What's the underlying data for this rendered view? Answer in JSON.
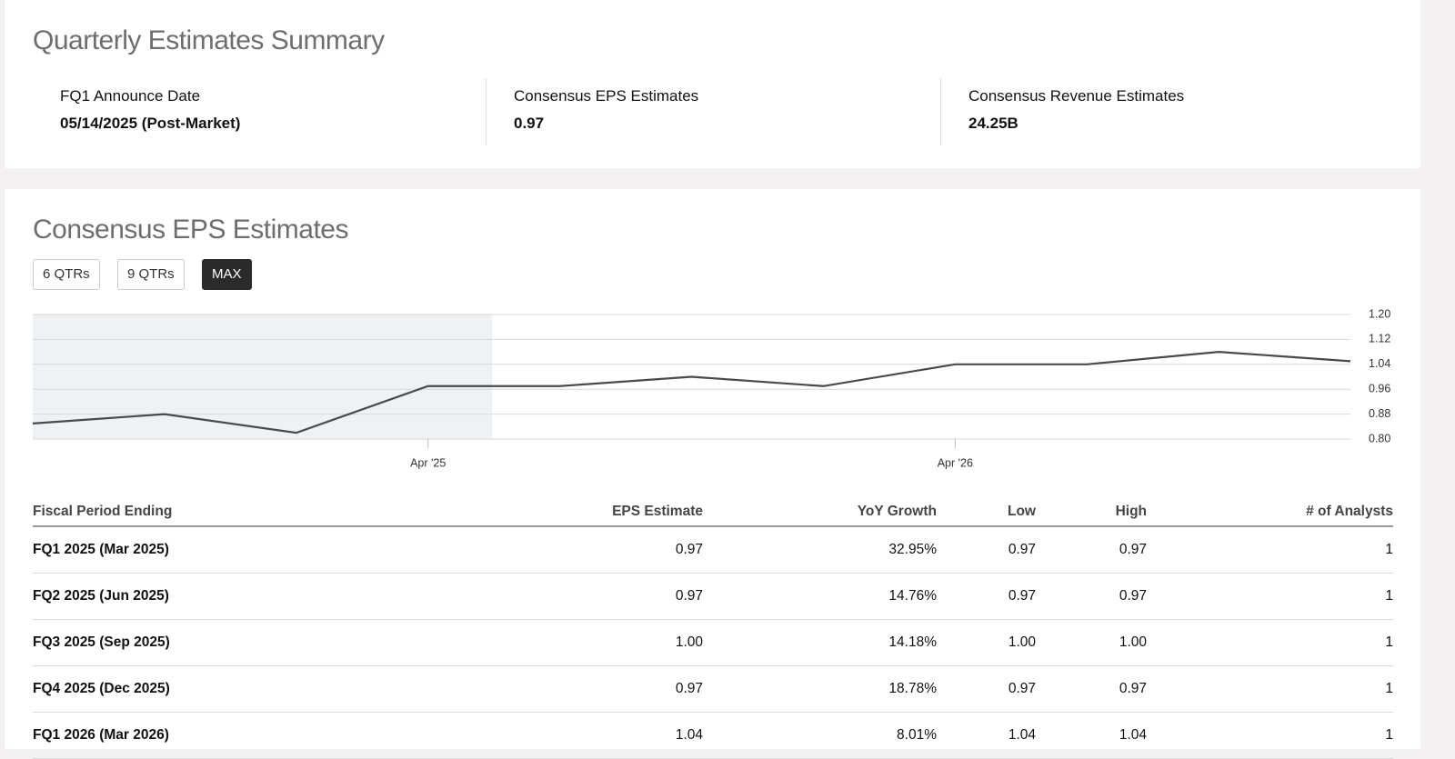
{
  "summary": {
    "title": "Quarterly Estimates Summary",
    "items": [
      {
        "label": "FQ1 Announce Date",
        "value": "05/14/2025 (Post-Market)"
      },
      {
        "label": "Consensus EPS Estimates",
        "value": "0.97"
      },
      {
        "label": "Consensus Revenue Estimates",
        "value": "24.25B"
      }
    ]
  },
  "chart_section": {
    "title": "Consensus EPS Estimates",
    "buttons": [
      "6 QTRs",
      "9 QTRs",
      "MAX"
    ],
    "active_button": 2
  },
  "chart_data": {
    "type": "line",
    "categories": [
      null,
      null,
      null,
      "Apr '25",
      null,
      null,
      null,
      "Apr '26",
      null,
      null,
      null
    ],
    "series": [
      {
        "color": "#4a4a4a",
        "values": [
          0.85,
          0.88,
          0.82,
          0.97,
          0.97,
          1.0,
          0.97,
          1.04,
          1.04,
          1.08,
          1.05
        ]
      }
    ],
    "ylim": [
      0.8,
      1.2
    ],
    "yticks": [
      {
        "value": 0.8,
        "label": "0.80"
      },
      0.88,
      0.96,
      1.04,
      1.12,
      {
        "value": 1.2,
        "label": "1.20"
      }
    ],
    "grid": true,
    "y_axis_side": "right"
  },
  "table": {
    "columns": [
      "Fiscal Period Ending",
      "EPS Estimate",
      "YoY Growth",
      "Low",
      "High",
      "# of Analysts"
    ],
    "rows": [
      [
        "FQ1 2025 (Mar 2025)",
        "0.97",
        "32.95%",
        "0.97",
        "0.97",
        "1"
      ],
      [
        "FQ2 2025 (Jun 2025)",
        "0.97",
        "14.76%",
        "0.97",
        "0.97",
        "1"
      ],
      [
        "FQ3 2025 (Sep 2025)",
        "1.00",
        "14.18%",
        "1.00",
        "1.00",
        "1"
      ],
      [
        "FQ4 2025 (Dec 2025)",
        "0.97",
        "18.78%",
        "0.97",
        "0.97",
        "1"
      ],
      [
        "FQ1 2026 (Mar 2026)",
        "1.04",
        "8.01%",
        "1.04",
        "1.04",
        "1"
      ]
    ]
  }
}
